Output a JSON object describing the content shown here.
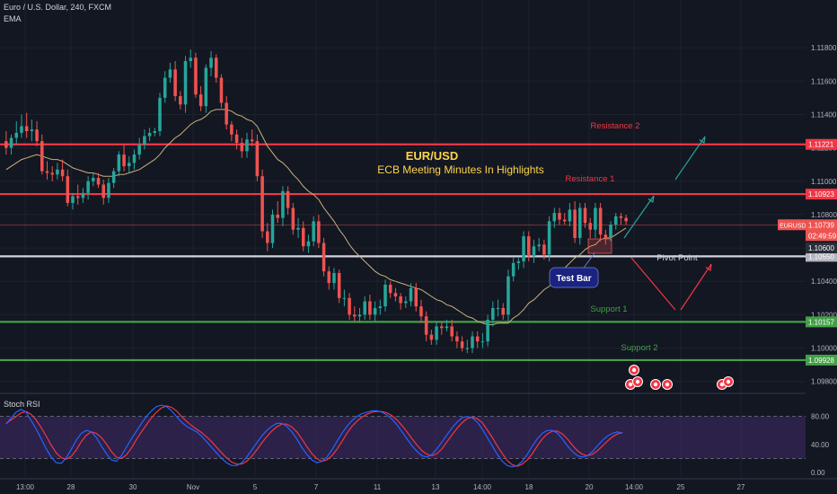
{
  "header": {
    "symbol_line": "Euro / U.S. Dollar, 240, FXCM",
    "indicator": "EMA",
    "rsi_label": "Stoch RSI"
  },
  "colors": {
    "background": "#131722",
    "bull": "#26a69a",
    "bear": "#ef5350",
    "ema": "#c9b27c",
    "resistance": "#f23645",
    "support": "#43a047",
    "pivot": "#d1d4dc",
    "rsi_k": "#2962ff",
    "rsi_d": "#f23645",
    "rsi_band": "#4a2e7a",
    "annotation_bull": "#26a69a",
    "annotation_bear": "#f23645",
    "title_yellow": "#ffd54a"
  },
  "icons": [
    "economic-event-icon",
    "economic-event-icon",
    "economic-event-icon"
  ],
  "chart_data": {
    "type": "candlestick",
    "title": "EUR/USD",
    "subtitle": "ECB Meeting Minutes In Highlights",
    "ylim": [
      1.0975,
      1.12
    ],
    "y_ticks": [
      1.098,
      1.1,
      1.102,
      1.104,
      1.106,
      1.108,
      1.11,
      1.112,
      1.114,
      1.116,
      1.118
    ],
    "x_ticks": [
      "13:00",
      "28",
      "30",
      "Nov",
      "5",
      "7",
      "11",
      "13",
      "14:00",
      "18",
      "20",
      "14:00",
      "25",
      "27"
    ],
    "open": [
      1.1124,
      1.112,
      1.1126,
      1.1129,
      1.1133,
      1.113,
      1.1131,
      1.1124,
      1.1106,
      1.1105,
      1.1104,
      1.1107,
      1.1103,
      1.1087,
      1.1091,
      1.109,
      1.1093,
      1.11,
      1.1102,
      1.1098,
      1.109,
      1.1099,
      1.1106,
      1.1116,
      1.1109,
      1.1111,
      1.1116,
      1.1122,
      1.1127,
      1.1129,
      1.113,
      1.115,
      1.1162,
      1.1167,
      1.1151,
      1.1146,
      1.1172,
      1.1174,
      1.1152,
      1.1145,
      1.1168,
      1.1174,
      1.1162,
      1.1147,
      1.1134,
      1.1128,
      1.1123,
      1.1118,
      1.1125,
      1.1124,
      1.1103,
      1.107,
      1.1063,
      1.108,
      1.1078,
      1.1094,
      1.1084,
      1.1071,
      1.1072,
      1.1061,
      1.1064,
      1.1076,
      1.1063,
      1.1046,
      1.1039,
      1.1045,
      1.103,
      1.103,
      1.102,
      1.1019,
      1.102,
      1.1028,
      1.102,
      1.1024,
      1.1025,
      1.1038,
      1.1033,
      1.1031,
      1.1027,
      1.1028,
      1.1036,
      1.1025,
      1.1019,
      1.1008,
      1.1005,
      1.1013,
      1.1012,
      1.1013,
      1.1007,
      1.1004,
      1.1,
      1.1,
      1.1007,
      1.1004,
      1.1004,
      1.1017,
      1.1024,
      1.1024,
      1.102,
      1.1043,
      1.1051,
      1.1052,
      1.1067,
      1.1055,
      1.1061,
      1.1062,
      1.1056,
      1.1076,
      1.1081,
      1.1077,
      1.1076,
      1.1083,
      1.1066,
      1.1084,
      1.1075,
      1.1071,
      1.1084,
      1.1068,
      1.1066,
      1.1074,
      1.1079,
      1.1078
    ],
    "high": [
      1.113,
      1.1128,
      1.1136,
      1.114,
      1.1141,
      1.1137,
      1.1136,
      1.1128,
      1.1112,
      1.1109,
      1.1111,
      1.1113,
      1.1107,
      1.1093,
      1.1098,
      1.1096,
      1.1103,
      1.1105,
      1.1105,
      1.1101,
      1.1102,
      1.1108,
      1.1118,
      1.1122,
      1.1115,
      1.1119,
      1.1126,
      1.1131,
      1.1132,
      1.1132,
      1.1153,
      1.1166,
      1.1171,
      1.1172,
      1.1154,
      1.1175,
      1.1179,
      1.1177,
      1.1157,
      1.117,
      1.1178,
      1.1176,
      1.1164,
      1.1151,
      1.1136,
      1.1131,
      1.1126,
      1.1129,
      1.1131,
      1.1128,
      1.1107,
      1.1075,
      1.1083,
      1.1088,
      1.1097,
      1.1097,
      1.1087,
      1.1078,
      1.1076,
      1.1068,
      1.1079,
      1.108,
      1.1066,
      1.1049,
      1.1048,
      1.1047,
      1.1035,
      1.1033,
      1.1025,
      1.1024,
      1.1031,
      1.1032,
      1.1028,
      1.1029,
      1.1041,
      1.104,
      1.1036,
      1.1033,
      1.1031,
      1.1039,
      1.1039,
      1.1029,
      1.1022,
      1.1011,
      1.1016,
      1.1016,
      1.1017,
      1.1017,
      1.101,
      1.1007,
      1.1005,
      1.101,
      1.101,
      1.1009,
      1.102,
      1.1028,
      1.1029,
      1.1027,
      1.1047,
      1.1054,
      1.1054,
      1.107,
      1.107,
      1.1065,
      1.1066,
      1.1065,
      1.1079,
      1.1084,
      1.1084,
      1.1081,
      1.1087,
      1.1088,
      1.1087,
      1.1087,
      1.1078,
      1.1087,
      1.1087,
      1.1071,
      1.1076,
      1.1081,
      1.1081,
      1.108
    ],
    "low": [
      1.1116,
      1.1116,
      1.1122,
      1.1126,
      1.1126,
      1.1124,
      1.1121,
      1.1104,
      1.1101,
      1.11,
      1.1101,
      1.11,
      1.1085,
      1.1083,
      1.1086,
      1.1087,
      1.1089,
      1.1097,
      1.1096,
      1.1086,
      1.1087,
      1.1096,
      1.1103,
      1.1106,
      1.1105,
      1.1107,
      1.1113,
      1.1119,
      1.1124,
      1.1127,
      1.1127,
      1.1147,
      1.1159,
      1.1148,
      1.1143,
      1.1141,
      1.1168,
      1.115,
      1.1142,
      1.1141,
      1.1163,
      1.1159,
      1.1144,
      1.1131,
      1.1124,
      1.1119,
      1.1114,
      1.1114,
      1.1121,
      1.11,
      1.1066,
      1.1058,
      1.106,
      1.1075,
      1.1073,
      1.108,
      1.1068,
      1.1066,
      1.1058,
      1.1057,
      1.1061,
      1.106,
      1.1043,
      1.1035,
      1.1035,
      1.1027,
      1.1025,
      1.1017,
      1.1016,
      1.1015,
      1.1017,
      1.1017,
      1.1016,
      1.102,
      1.1022,
      1.103,
      1.1028,
      1.1023,
      1.1024,
      1.1025,
      1.1022,
      1.1015,
      1.1004,
      1.1002,
      1.1002,
      1.1008,
      1.101,
      1.1004,
      1.1,
      1.0998,
      1.0997,
      1.0997,
      1.1,
      1.1,
      1.1001,
      1.1013,
      1.1019,
      1.1017,
      1.1016,
      1.104,
      1.1047,
      1.1048,
      1.1052,
      1.1051,
      1.1058,
      1.1053,
      1.1052,
      1.1072,
      1.1074,
      1.1074,
      1.1073,
      1.1063,
      1.1062,
      1.1072,
      1.1066,
      1.1066,
      1.1064,
      1.1062,
      1.1064,
      1.1071,
      1.1074,
      1.1074
    ],
    "close": [
      1.112,
      1.1126,
      1.1129,
      1.1133,
      1.113,
      1.1131,
      1.1124,
      1.1106,
      1.1105,
      1.1104,
      1.1107,
      1.1103,
      1.1087,
      1.1091,
      1.109,
      1.1093,
      1.11,
      1.1102,
      1.1098,
      1.109,
      1.1099,
      1.1106,
      1.1116,
      1.1109,
      1.1111,
      1.1116,
      1.1122,
      1.1127,
      1.1129,
      1.113,
      1.115,
      1.1162,
      1.1167,
      1.1151,
      1.1146,
      1.1172,
      1.1174,
      1.1152,
      1.1145,
      1.1168,
      1.1174,
      1.1162,
      1.1147,
      1.1134,
      1.1128,
      1.1123,
      1.1118,
      1.1125,
      1.1124,
      1.1103,
      1.107,
      1.1063,
      1.108,
      1.1078,
      1.1094,
      1.1084,
      1.1071,
      1.1072,
      1.1061,
      1.1064,
      1.1076,
      1.1063,
      1.1046,
      1.1039,
      1.1045,
      1.103,
      1.103,
      1.102,
      1.1019,
      1.102,
      1.1028,
      1.102,
      1.1024,
      1.1025,
      1.1038,
      1.1033,
      1.1031,
      1.1027,
      1.1028,
      1.1036,
      1.1025,
      1.1019,
      1.1008,
      1.1005,
      1.1013,
      1.1012,
      1.1013,
      1.1007,
      1.1004,
      1.1,
      1.1,
      1.1007,
      1.1004,
      1.1004,
      1.1017,
      1.1024,
      1.1024,
      1.102,
      1.1043,
      1.1051,
      1.1052,
      1.1067,
      1.1055,
      1.1061,
      1.1062,
      1.1056,
      1.1076,
      1.1081,
      1.1077,
      1.1076,
      1.1083,
      1.1066,
      1.1084,
      1.1075,
      1.1071,
      1.1084,
      1.1068,
      1.1066,
      1.1074,
      1.1079,
      1.1078,
      1.1076
    ],
    "ema": [
      1.1107,
      1.1109,
      1.1111,
      1.1113,
      1.1114,
      1.1115,
      1.1116,
      1.1115,
      1.1114,
      1.1113,
      1.1113,
      1.1112,
      1.111,
      1.1108,
      1.1107,
      1.1106,
      1.1105,
      1.1105,
      1.1104,
      1.1103,
      1.1103,
      1.1103,
      1.1104,
      1.1104,
      1.1105,
      1.1106,
      1.1107,
      1.1109,
      1.1111,
      1.1113,
      1.1116,
      1.112,
      1.1123,
      1.1126,
      1.1128,
      1.1131,
      1.1134,
      1.1136,
      1.1137,
      1.1139,
      1.1142,
      1.1143,
      1.1143,
      1.1143,
      1.1142,
      1.114,
      1.1139,
      1.1137,
      1.1136,
      1.1133,
      1.1127,
      1.1121,
      1.1117,
      1.1113,
      1.1111,
      1.1108,
      1.1104,
      1.1101,
      1.1097,
      1.1094,
      1.1092,
      1.1089,
      1.1084,
      1.108,
      1.1076,
      1.1071,
      1.1067,
      1.1062,
      1.1058,
      1.1055,
      1.1052,
      1.1049,
      1.1046,
      1.1044,
      1.1043,
      1.1041,
      1.104,
      1.1039,
      1.1038,
      1.1037,
      1.1036,
      1.1035,
      1.1033,
      1.1031,
      1.1029,
      1.1028,
      1.1026,
      1.1025,
      1.1023,
      1.1021,
      1.1019,
      1.1018,
      1.1016,
      1.1015,
      1.1014,
      1.1014,
      1.1015,
      1.1015,
      1.1015,
      1.1018,
      1.102,
      1.1023,
      1.1027,
      1.1029,
      1.1032,
      1.1035,
      1.1037,
      1.1041,
      1.1045,
      1.1048,
      1.1051,
      1.1054,
      1.1056,
      1.1059,
      1.1061,
      1.1062,
      1.1065,
      1.1066,
      1.1066,
      1.1068,
      1.107,
      1.1072
    ],
    "levels": [
      {
        "name": "Resistance 2",
        "value": 1.11221,
        "label": "1.11221",
        "color": "#f23645"
      },
      {
        "name": "Resistance 1",
        "value": 1.10923,
        "label": "1.10923",
        "color": "#f23645"
      },
      {
        "name": "Pivot Point",
        "value": 1.1055,
        "label": "1.10550",
        "color": "#d1d4dc"
      },
      {
        "name": "Support 1",
        "value": 1.10157,
        "label": "1.10157",
        "color": "#43a047"
      },
      {
        "name": "Support 2",
        "value": 1.09928,
        "label": "1.09928",
        "color": "#43a047"
      }
    ],
    "price_tag": {
      "symbol": "EURUSD",
      "value": 1.10739,
      "label": "1.10739",
      "countdown": "02:49:59"
    },
    "secondary_tag": {
      "value": 1.106,
      "label": "1.10600"
    },
    "annotations": {
      "test_bar": "Test Bar"
    },
    "stoch_rsi": {
      "ylim": [
        -5,
        100
      ],
      "y_ticks": [
        0.0,
        40.0,
        80.0
      ],
      "band": [
        20,
        80
      ],
      "k": [
        69,
        78,
        86,
        90,
        86,
        74,
        62,
        48,
        34,
        22,
        14,
        13,
        21,
        33,
        46,
        56,
        60,
        58,
        50,
        38,
        27,
        18,
        16,
        24,
        36,
        48,
        59,
        70,
        80,
        88,
        94,
        96,
        94,
        88,
        80,
        72,
        66,
        62,
        58,
        52,
        44,
        36,
        28,
        20,
        14,
        10,
        10,
        14,
        22,
        32,
        42,
        52,
        60,
        66,
        70,
        70,
        66,
        58,
        48,
        36,
        26,
        18,
        14,
        16,
        22,
        32,
        44,
        56,
        66,
        74,
        80,
        84,
        86,
        88,
        88,
        86,
        82,
        76,
        68,
        58,
        48,
        38,
        30,
        24,
        22,
        26,
        34,
        44,
        54,
        64,
        72,
        78,
        80,
        78,
        72,
        62,
        50,
        38,
        26,
        16,
        10,
        8,
        10,
        16,
        26,
        38,
        48,
        56,
        60,
        60,
        56,
        48,
        38,
        30,
        24,
        22,
        24,
        30,
        38,
        46,
        52,
        56,
        58,
        56
      ],
      "d": [
        70,
        75,
        80,
        85,
        87,
        83,
        75,
        64,
        52,
        39,
        28,
        21,
        19,
        23,
        32,
        44,
        53,
        58,
        56,
        50,
        41,
        30,
        22,
        20,
        25,
        35,
        47,
        58,
        68,
        78,
        86,
        92,
        95,
        93,
        88,
        80,
        73,
        67,
        62,
        57,
        51,
        44,
        36,
        28,
        21,
        15,
        12,
        12,
        16,
        23,
        32,
        42,
        51,
        59,
        65,
        69,
        69,
        65,
        58,
        48,
        37,
        27,
        20,
        16,
        18,
        24,
        33,
        44,
        56,
        66,
        73,
        79,
        83,
        86,
        87,
        87,
        85,
        81,
        75,
        67,
        58,
        48,
        39,
        31,
        26,
        24,
        27,
        34,
        44,
        54,
        63,
        71,
        77,
        79,
        77,
        71,
        61,
        50,
        38,
        27,
        17,
        11,
        9,
        12,
        18,
        27,
        38,
        48,
        55,
        59,
        59,
        55,
        48,
        39,
        31,
        26,
        24,
        26,
        31,
        38,
        45,
        51,
        55,
        57
      ]
    }
  }
}
